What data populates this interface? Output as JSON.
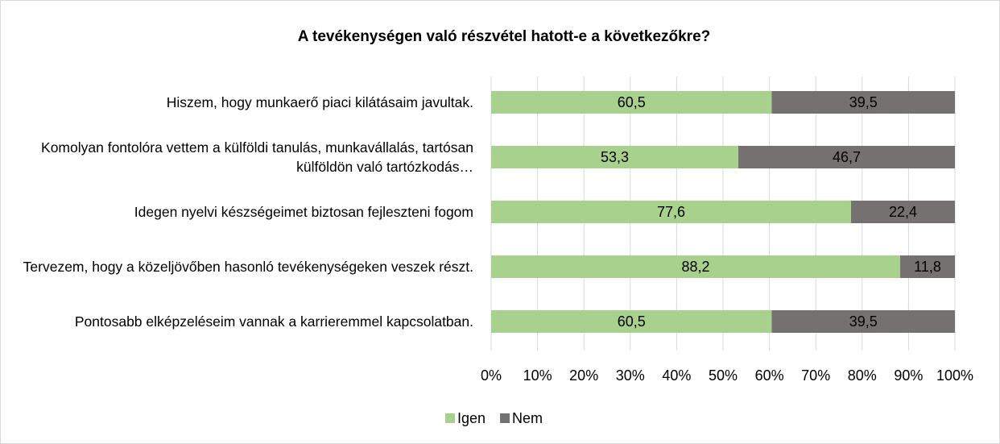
{
  "chart_data": {
    "type": "stacked_barh",
    "title": "A tevékenységen való részvétel hatott-e a következőkre?",
    "categories": [
      "Hiszem, hogy munkaerő piaci kilátásaim javultak.",
      "Komolyan fontolóra vettem a külföldi tanulás, munkavállalás, tartósan külföldön való tartózkodás…",
      "Idegen nyelvi készségeimet biztosan fejleszteni fogom",
      "Tervezem, hogy a közeljövőben hasonló tevékenységeken veszek részt.",
      "Pontosabb elképzeléseim vannak a karrieremmel kapcsolatban."
    ],
    "series": [
      {
        "name": "Igen",
        "color": "#a9d18e",
        "values": [
          60.5,
          53.3,
          77.6,
          88.2,
          60.5
        ],
        "value_labels": [
          "60,5",
          "53,3",
          "77,6",
          "88,2",
          "60,5"
        ]
      },
      {
        "name": "Nem",
        "color": "#767171",
        "values": [
          39.5,
          46.7,
          22.4,
          11.8,
          39.5
        ],
        "value_labels": [
          "39,5",
          "46,7",
          "22,4",
          "11,8",
          "39,5"
        ]
      }
    ],
    "xlim": [
      0,
      100
    ],
    "xticks": [
      {
        "value": 0,
        "label": "0%"
      },
      {
        "value": 10,
        "label": "10%"
      },
      {
        "value": 20,
        "label": "20%"
      },
      {
        "value": 30,
        "label": "30%"
      },
      {
        "value": 40,
        "label": "40%"
      },
      {
        "value": 50,
        "label": "50%"
      },
      {
        "value": 60,
        "label": "60%"
      },
      {
        "value": 70,
        "label": "70%"
      },
      {
        "value": 80,
        "label": "80%"
      },
      {
        "value": 90,
        "label": "90%"
      },
      {
        "value": 100,
        "label": "100%"
      }
    ],
    "grid": true,
    "legend": "bottom"
  }
}
